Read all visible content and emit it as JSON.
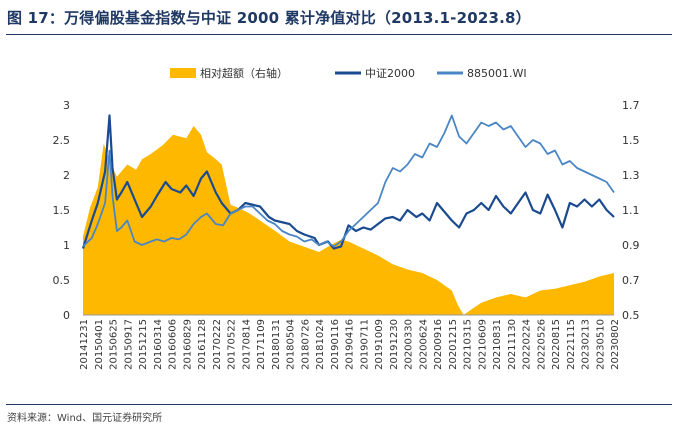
{
  "title": "图 17：万得偏股基金指数与中证 2000 累计净值对比（2013.1-2023.8）",
  "source": "资料来源：Wind、国元证券研究所",
  "colors": {
    "title": "#1f3864",
    "excess": "#ffb800",
    "zz2000": "#1a4a8f",
    "fund": "#4a86c5"
  },
  "chart_data": {
    "type": "line",
    "legend": [
      "相对超额（右轴）",
      "中证2000",
      "885001.WI"
    ],
    "legend_position": "top",
    "grid": false,
    "left_axis": {
      "ylim": [
        0,
        3
      ],
      "ticks": [
        "0",
        "0.5",
        "1",
        "1.5",
        "2",
        "2.5",
        "3"
      ]
    },
    "right_axis": {
      "ylim": [
        0.5,
        1.7
      ],
      "ticks": [
        "0.5",
        "0.7",
        "0.9",
        "1.1",
        "1.3",
        "1.5",
        "1.7"
      ]
    },
    "x_tick_labels": [
      "20141231",
      "20150401",
      "20150625",
      "20150917",
      "20151215",
      "20160314",
      "20160606",
      "20160829",
      "20161128",
      "20170222",
      "20170522",
      "20170814",
      "20171109",
      "20180131",
      "20180504",
      "20180726",
      "20181024",
      "20190116",
      "20190416",
      "20190711",
      "20191009",
      "20191230",
      "20200330",
      "20200624",
      "20200916",
      "20201215",
      "20210315",
      "20210609",
      "20210831",
      "20211130",
      "20220224",
      "20220526",
      "20220815",
      "20221115",
      "20230213",
      "20230510",
      "20230802"
    ],
    "x_range": [
      0,
      36
    ],
    "series": [
      {
        "name": "相对超额（右轴）",
        "kind": "area",
        "axis": "right",
        "x": [
          0,
          0.5,
          1,
          1.4,
          1.9,
          2.3,
          3,
          3.6,
          4,
          4.6,
          5.4,
          6.1,
          7,
          7.5,
          8,
          8.4,
          9,
          9.4,
          10,
          10.6,
          11.3,
          12,
          13.2,
          14,
          15,
          16,
          17,
          17.5,
          18,
          19,
          20,
          21,
          22,
          23,
          24,
          24.5,
          25,
          25.4,
          25.8,
          26.3,
          27,
          28,
          29,
          30,
          31,
          32,
          33,
          34,
          35,
          36
        ],
        "y": [
          0.95,
          1.12,
          1.23,
          1.48,
          1.36,
          1.29,
          1.36,
          1.33,
          1.39,
          1.42,
          1.47,
          1.53,
          1.51,
          1.58,
          1.53,
          1.43,
          1.39,
          1.36,
          1.13,
          1.11,
          1.08,
          1.04,
          0.97,
          0.92,
          0.89,
          0.86,
          0.91,
          0.93,
          0.92,
          0.88,
          0.84,
          0.79,
          0.76,
          0.74,
          0.7,
          0.67,
          0.64,
          0.56,
          0.5,
          0.53,
          0.57,
          0.6,
          0.62,
          0.6,
          0.64,
          0.65,
          0.67,
          0.69,
          0.72,
          0.74
        ]
      },
      {
        "name": "中证2000",
        "kind": "line",
        "axis": "left",
        "x": [
          0,
          0.6,
          1,
          1.5,
          1.8,
          2,
          2.3,
          2.6,
          3,
          3.6,
          4,
          4.6,
          5,
          5.6,
          6,
          6.6,
          7,
          7.5,
          8,
          8.4,
          9,
          9.4,
          10,
          10.5,
          11,
          12,
          12.6,
          13,
          14,
          14.5,
          15,
          15.7,
          16,
          16.6,
          17,
          17.5,
          18,
          18.5,
          19,
          19.5,
          20,
          20.5,
          21,
          21.5,
          22,
          22.6,
          23,
          23.5,
          24,
          24.4,
          25,
          25.5,
          26,
          26.5,
          27,
          27.5,
          28,
          28.5,
          29,
          29.5,
          30,
          30.5,
          31,
          31.5,
          32,
          32.5,
          33,
          33.5,
          34,
          34.5,
          35,
          35.5,
          36
        ],
        "y": [
          0.95,
          1.35,
          1.6,
          2.05,
          2.85,
          2.1,
          1.65,
          1.75,
          1.9,
          1.6,
          1.4,
          1.55,
          1.7,
          1.9,
          1.8,
          1.75,
          1.85,
          1.7,
          1.95,
          2.05,
          1.75,
          1.6,
          1.45,
          1.5,
          1.6,
          1.55,
          1.4,
          1.35,
          1.3,
          1.2,
          1.15,
          1.1,
          1.0,
          1.05,
          0.95,
          0.98,
          1.28,
          1.2,
          1.25,
          1.22,
          1.3,
          1.38,
          1.4,
          1.35,
          1.5,
          1.4,
          1.45,
          1.35,
          1.6,
          1.5,
          1.35,
          1.25,
          1.45,
          1.5,
          1.6,
          1.5,
          1.7,
          1.55,
          1.45,
          1.6,
          1.75,
          1.5,
          1.45,
          1.72,
          1.5,
          1.25,
          1.6,
          1.55,
          1.65,
          1.55,
          1.65,
          1.5,
          1.4
        ]
      },
      {
        "name": "885001.WI",
        "kind": "line",
        "axis": "left",
        "x": [
          0,
          0.6,
          1,
          1.5,
          1.8,
          2,
          2.3,
          2.6,
          3,
          3.5,
          4,
          4.6,
          5,
          5.5,
          6,
          6.5,
          7,
          7.5,
          8,
          8.4,
          9,
          9.5,
          10,
          10.5,
          11,
          11.5,
          12,
          12.5,
          13,
          13.5,
          14,
          14.5,
          15,
          15.5,
          16,
          16.5,
          17,
          17.5,
          18,
          18.5,
          19,
          19.5,
          20,
          20.5,
          21,
          21.5,
          22,
          22.5,
          23,
          23.5,
          24,
          24.5,
          25,
          25.5,
          26,
          26.5,
          27,
          27.5,
          28,
          28.5,
          29,
          29.5,
          30,
          30.5,
          31,
          31.5,
          32,
          32.5,
          33,
          33.5,
          34,
          34.5,
          35,
          35.5,
          36
        ],
        "y": [
          0.98,
          1.1,
          1.3,
          1.6,
          2.35,
          1.7,
          1.2,
          1.25,
          1.35,
          1.05,
          1.0,
          1.05,
          1.08,
          1.05,
          1.1,
          1.08,
          1.15,
          1.3,
          1.4,
          1.45,
          1.3,
          1.28,
          1.45,
          1.5,
          1.55,
          1.55,
          1.45,
          1.35,
          1.3,
          1.2,
          1.15,
          1.12,
          1.05,
          1.08,
          1.0,
          1.05,
          0.98,
          1.05,
          1.2,
          1.3,
          1.4,
          1.5,
          1.6,
          1.9,
          2.1,
          2.05,
          2.15,
          2.3,
          2.25,
          2.45,
          2.4,
          2.6,
          2.85,
          2.55,
          2.45,
          2.6,
          2.75,
          2.7,
          2.75,
          2.65,
          2.7,
          2.55,
          2.4,
          2.5,
          2.45,
          2.3,
          2.35,
          2.15,
          2.2,
          2.1,
          2.05,
          2.0,
          1.95,
          1.9,
          1.75
        ]
      }
    ]
  }
}
